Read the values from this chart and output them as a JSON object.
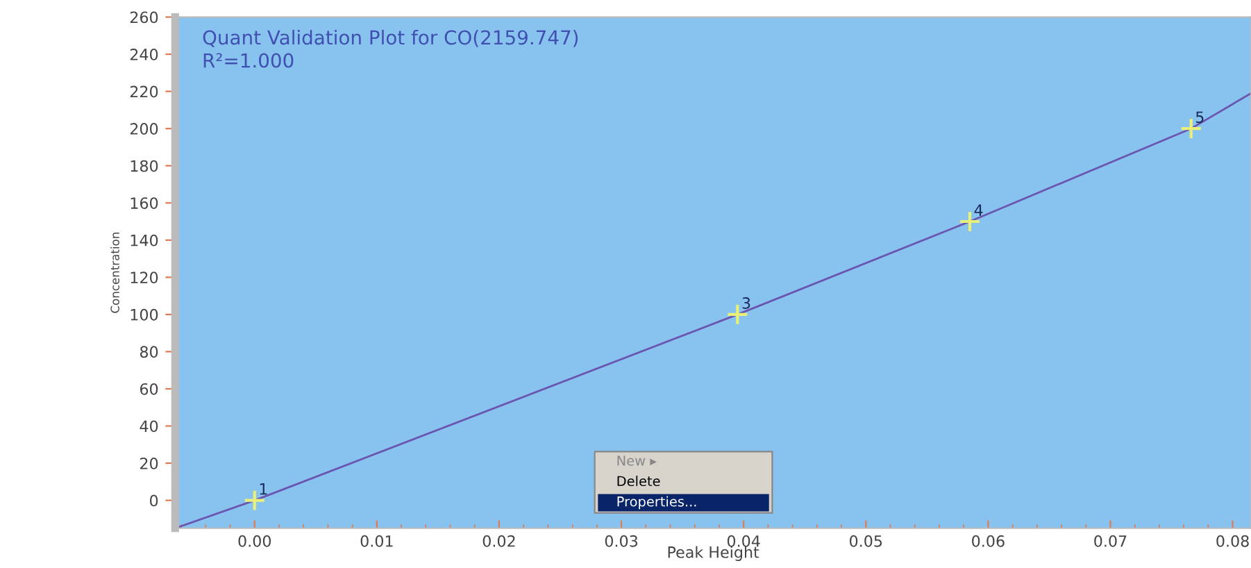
{
  "chart_data": {
    "type": "scatter",
    "title": "Quant Validation Plot for CO(2159.747)",
    "subtitle": "R²=1.000",
    "xlabel": "Peak Height",
    "ylabel": "Concentration",
    "xlim": [
      -0.0065,
      0.0815
    ],
    "ylim": [
      -15,
      260
    ],
    "xticks": [
      {
        "value": 0,
        "label": "0.00"
      },
      {
        "value": 0.01,
        "label": "0.01"
      },
      {
        "value": 0.02,
        "label": "0.02"
      },
      {
        "value": 0.03,
        "label": "0.03"
      },
      {
        "value": 0.04,
        "label": "0.04"
      },
      {
        "value": 0.05,
        "label": "0.05"
      },
      {
        "value": 0.06,
        "label": "0.06"
      },
      {
        "value": 0.07,
        "label": "0.07"
      },
      {
        "value": 0.08,
        "label": "0.08"
      }
    ],
    "yticks": [
      0,
      20,
      40,
      60,
      80,
      100,
      120,
      140,
      160,
      180,
      200,
      220,
      240,
      260
    ],
    "series": [
      {
        "type": "line",
        "marker": "none",
        "color": "#6a55b0",
        "x": [
          -0.0065,
          0,
          0.0395,
          0.0585,
          0.0766,
          0.0815
        ],
        "values": [
          -15,
          0,
          100,
          150,
          200,
          219
        ]
      },
      {
        "marker": "cross",
        "color": "#e8f07a",
        "x": [
          0,
          0.0395,
          0.0585,
          0.0766
        ],
        "values": [
          0,
          100,
          150,
          200
        ]
      }
    ],
    "annotations": [
      {
        "text": "1",
        "x": 0,
        "y": 0
      },
      {
        "text": "3",
        "x": 0.0395,
        "y": 100
      },
      {
        "text": "4",
        "x": 0.0585,
        "y": 150
      },
      {
        "text": "5",
        "x": 0.0766,
        "y": 200
      },
      "New ▸",
      "Delete",
      "Properties..."
    ]
  }
}
